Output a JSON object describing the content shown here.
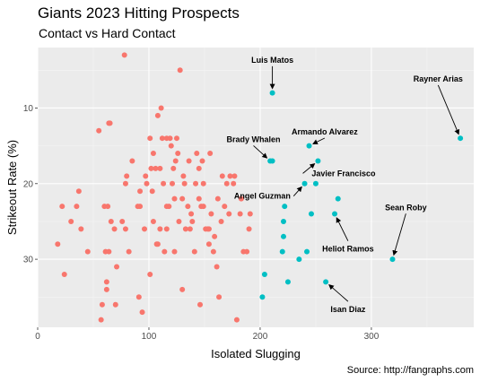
{
  "chart_data": {
    "type": "scatter",
    "title": "Giants 2023 Hitting Prospects",
    "subtitle": "Contact vs Hard Contact",
    "xlabel": "Isolated Slugging",
    "ylabel": "Strikeout Rate (%)",
    "caption": "Source: http://fangraphs.com",
    "xlim": [
      0,
      392
    ],
    "ylim": [
      2,
      39
    ],
    "y_reversed": true,
    "x_ticks": [
      0,
      100,
      200,
      300
    ],
    "y_ticks": [
      10,
      20,
      30
    ],
    "grid": true,
    "legend": "none",
    "series": [
      {
        "color": "#f8766d",
        "points": [
          [
            18,
            28
          ],
          [
            22,
            23
          ],
          [
            24,
            32
          ],
          [
            30,
            25
          ],
          [
            35,
            23
          ],
          [
            37,
            21
          ],
          [
            39,
            26
          ],
          [
            45,
            29
          ],
          [
            55,
            13
          ],
          [
            57,
            38
          ],
          [
            58,
            36
          ],
          [
            60,
            23
          ],
          [
            61,
            29
          ],
          [
            62,
            34
          ],
          [
            62,
            33
          ],
          [
            63,
            23
          ],
          [
            64,
            29
          ],
          [
            64,
            12
          ],
          [
            65,
            12
          ],
          [
            66,
            25
          ],
          [
            69,
            26
          ],
          [
            70,
            36
          ],
          [
            71,
            31
          ],
          [
            76,
            25
          ],
          [
            78,
            3
          ],
          [
            79,
            26
          ],
          [
            79,
            20
          ],
          [
            80,
            19
          ],
          [
            82,
            29
          ],
          [
            85,
            17
          ],
          [
            90,
            23
          ],
          [
            91,
            35
          ],
          [
            92,
            23
          ],
          [
            92,
            21
          ],
          [
            94,
            37
          ],
          [
            96,
            26
          ],
          [
            97,
            19
          ],
          [
            98,
            20
          ],
          [
            101,
            14
          ],
          [
            101,
            32
          ],
          [
            102,
            18
          ],
          [
            103,
            21
          ],
          [
            104,
            25
          ],
          [
            104,
            16
          ],
          [
            106,
            18
          ],
          [
            107,
            28
          ],
          [
            108,
            28
          ],
          [
            108,
            11
          ],
          [
            110,
            26
          ],
          [
            110,
            18
          ],
          [
            111,
            10
          ],
          [
            112,
            14
          ],
          [
            113,
            20
          ],
          [
            114,
            29
          ],
          [
            116,
            14
          ],
          [
            116,
            23
          ],
          [
            116,
            26
          ],
          [
            118,
            23
          ],
          [
            119,
            14
          ],
          [
            120,
            15
          ],
          [
            121,
            20
          ],
          [
            122,
            18
          ],
          [
            123,
            22
          ],
          [
            123,
            29
          ],
          [
            124,
            17
          ],
          [
            125,
            14
          ],
          [
            126,
            16
          ],
          [
            127,
            25
          ],
          [
            128,
            5
          ],
          [
            130,
            34
          ],
          [
            130,
            22
          ],
          [
            131,
            19
          ],
          [
            132,
            20
          ],
          [
            133,
            26
          ],
          [
            135,
            23
          ],
          [
            136,
            17
          ],
          [
            137,
            26
          ],
          [
            138,
            24
          ],
          [
            139,
            25
          ],
          [
            141,
            29
          ],
          [
            142,
            20
          ],
          [
            143,
            16
          ],
          [
            145,
            18
          ],
          [
            145,
            22
          ],
          [
            146,
            36
          ],
          [
            147,
            23
          ],
          [
            148,
            17
          ],
          [
            149,
            23
          ],
          [
            149,
            20
          ],
          [
            151,
            26
          ],
          [
            153,
            26
          ],
          [
            154,
            26
          ],
          [
            154,
            28
          ],
          [
            155,
            16
          ],
          [
            156,
            24
          ],
          [
            158,
            29
          ],
          [
            159,
            27
          ],
          [
            161,
            31
          ],
          [
            162,
            22
          ],
          [
            163,
            35
          ],
          [
            165,
            25
          ],
          [
            166,
            19
          ],
          [
            168,
            23
          ],
          [
            170,
            20
          ],
          [
            172,
            24
          ],
          [
            173,
            19
          ],
          [
            176,
            20
          ],
          [
            177,
            19
          ],
          [
            179,
            38
          ],
          [
            182,
            24
          ],
          [
            183,
            22
          ],
          [
            185,
            29
          ],
          [
            188,
            29
          ],
          [
            190,
            26
          ],
          [
            191,
            24
          ]
        ]
      },
      {
        "color": "#00bfc4",
        "points": [
          [
            202,
            35
          ],
          [
            204,
            32
          ],
          [
            209,
            17
          ],
          [
            211,
            17
          ],
          [
            211,
            8
          ],
          [
            220,
            29
          ],
          [
            221,
            27
          ],
          [
            221,
            25
          ],
          [
            222,
            23
          ],
          [
            225,
            33
          ],
          [
            235,
            30
          ],
          [
            240,
            20
          ],
          [
            242,
            29
          ],
          [
            244,
            15
          ],
          [
            246,
            24
          ],
          [
            250,
            20
          ],
          [
            252,
            17
          ],
          [
            259,
            33
          ],
          [
            267,
            24
          ],
          [
            270,
            22
          ],
          [
            319,
            30
          ],
          [
            380,
            14
          ]
        ]
      }
    ],
    "annotations": [
      {
        "text": "Luis Matos",
        "label_x": 211,
        "label_y": 4,
        "point_x": 211,
        "point_y": 8
      },
      {
        "text": "Rayner Arias",
        "label_x": 360,
        "label_y": 6.5,
        "point_x": 380,
        "point_y": 14
      },
      {
        "text": "Armando Alvarez",
        "label_x": 258,
        "label_y": 13.5,
        "point_x": 244,
        "point_y": 15
      },
      {
        "text": "Brady Whalen",
        "label_x": 194,
        "label_y": 14.5,
        "point_x": 209,
        "point_y": 17
      },
      {
        "text": "Javier Francisco",
        "label_x": 275,
        "label_y": 19,
        "point_x": 252,
        "point_y": 17
      },
      {
        "text": "Angel Guzman",
        "label_x": 202,
        "label_y": 22,
        "point_x": 240,
        "point_y": 20
      },
      {
        "text": "Sean Roby",
        "label_x": 331,
        "label_y": 23.5,
        "point_x": 319,
        "point_y": 30
      },
      {
        "text": "Heliot Ramos",
        "label_x": 279,
        "label_y": 29,
        "point_x": 267,
        "point_y": 24
      },
      {
        "text": "Isan Diaz",
        "label_x": 279,
        "label_y": 37,
        "point_x": 259,
        "point_y": 33
      }
    ]
  }
}
